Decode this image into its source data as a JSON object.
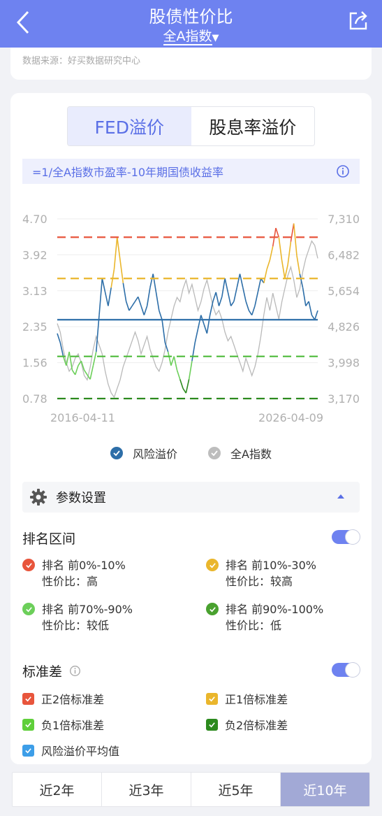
{
  "header": {
    "title": "股债性价比",
    "subtitle": "全A指数"
  },
  "source": "数据来源：好买数据研究中心",
  "segment": {
    "active": "FED溢价",
    "inactive": "股息率溢价"
  },
  "formula": "=1/全A指数市盈率-10年期国债收益率",
  "chart_data": {
    "type": "line",
    "y_left_ticks": [
      "4.70",
      "3.92",
      "3.13",
      "2.35",
      "1.56",
      "0.78"
    ],
    "y_right_ticks": [
      "7,310",
      "6,482",
      "5,654",
      "4,826",
      "3,998",
      "3,170"
    ],
    "x_labels": [
      "2016-04-11",
      "2026-04-09"
    ],
    "ylim_left": [
      0.78,
      4.7
    ],
    "ylim_right": [
      3170,
      7310
    ],
    "reference_lines": [
      {
        "value": 4.3,
        "color": "#e8553c",
        "style": "dashed"
      },
      {
        "value": 3.4,
        "color": "#eab62c",
        "style": "dashed"
      },
      {
        "value": 2.5,
        "color": "#2d6ea8",
        "style": "solid"
      },
      {
        "value": 1.7,
        "color": "#4dbb3a",
        "style": "dashed"
      },
      {
        "value": 0.78,
        "color": "#2c8a1e",
        "style": "dashed"
      }
    ],
    "series": [
      {
        "name": "风险溢价",
        "color": "#2d6ea8",
        "values": [
          2.2,
          2.0,
          1.7,
          1.5,
          1.8,
          1.4,
          1.3,
          1.5,
          1.6,
          1.4,
          1.3,
          1.2,
          1.5,
          1.8,
          2.6,
          3.4,
          3.1,
          2.8,
          3.2,
          3.6,
          4.3,
          3.8,
          3.3,
          2.9,
          2.7,
          2.8,
          2.9,
          3.0,
          2.8,
          2.6,
          2.8,
          3.2,
          3.5,
          3.1,
          2.7,
          2.5,
          2.0,
          1.8,
          1.5,
          1.7,
          1.4,
          1.2,
          1.0,
          0.9,
          1.2,
          1.6,
          2.0,
          2.3,
          2.6,
          2.4,
          2.2,
          2.6,
          2.9,
          3.1,
          2.8,
          3.0,
          3.4,
          3.1,
          2.8,
          2.9,
          3.2,
          3.5,
          3.2,
          2.9,
          2.7,
          2.6,
          2.8,
          3.1,
          3.4,
          3.3,
          3.6,
          3.8,
          4.1,
          4.5,
          4.3,
          3.8,
          3.4,
          3.7,
          4.2,
          4.6,
          3.9,
          3.5,
          3.2,
          2.8,
          2.9,
          2.6,
          2.5,
          2.7
        ]
      },
      {
        "name": "全A指数",
        "color": "#b9b9b9",
        "values": [
          4900,
          4700,
          4300,
          4000,
          3800,
          3900,
          4100,
          4200,
          4000,
          3700,
          3600,
          3900,
          4300,
          4600,
          4400,
          4200,
          3800,
          3500,
          3300,
          3200,
          3400,
          3600,
          3900,
          4100,
          4300,
          4500,
          4700,
          4500,
          4200,
          4400,
          4600,
          4300,
          4100,
          3900,
          3800,
          4000,
          4300,
          4700,
          5000,
          5300,
          5500,
          5400,
          5700,
          5900,
          5600,
          5800,
          5500,
          5200,
          5400,
          5700,
          5900,
          5600,
          5300,
          5100,
          5200,
          5000,
          4700,
          4500,
          4600,
          4400,
          4200,
          4000,
          3800,
          4100,
          3900,
          3700,
          3900,
          4200,
          4600,
          5100,
          5500,
          5200,
          5600,
          5300,
          5000,
          5400,
          5700,
          6000,
          6200,
          5900,
          5500,
          5700,
          6100,
          6400,
          6600,
          6800,
          6700,
          6400
        ]
      }
    ]
  },
  "legend": [
    {
      "name": "风险溢价",
      "color": "#2d6ea8"
    },
    {
      "name": "全A指数",
      "color": "#b9b9b9"
    }
  ],
  "param_title": "参数设置",
  "rank": {
    "title": "排名区间",
    "items": [
      {
        "range": "排名 前0%-10%",
        "label": "性价比：高",
        "color": "#e8553c"
      },
      {
        "range": "排名 前10%-30%",
        "label": "性价比：较高",
        "color": "#eab62c"
      },
      {
        "range": "排名 前70%-90%",
        "label": "性价比：较低",
        "color": "#6ccf5a"
      },
      {
        "range": "排名 前90%-100%",
        "label": "性价比：低",
        "color": "#49a12f"
      }
    ]
  },
  "std": {
    "title": "标准差",
    "items": [
      {
        "label": "正2倍标准差",
        "color": "#e8553c"
      },
      {
        "label": "正1倍标准差",
        "color": "#eab62c"
      },
      {
        "label": "负1倍标准差",
        "color": "#5fcf3a"
      },
      {
        "label": "负2倍标准差",
        "color": "#2c8a1e"
      },
      {
        "label": "风险溢价平均值",
        "color": "#3d9ee8"
      }
    ]
  },
  "tabs": [
    "近2年",
    "近3年",
    "近5年",
    "近10年"
  ]
}
